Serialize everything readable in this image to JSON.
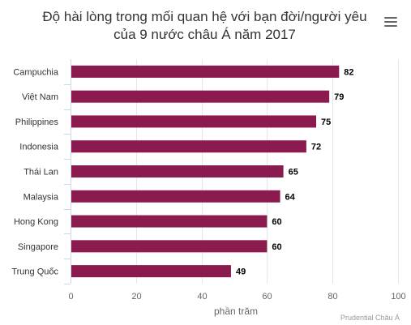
{
  "title_line1": "Độ hài lòng trong mối quan hệ với bạn đời/người yêu",
  "title_line2": "của 9 nước châu Á năm 2017",
  "menu_icon": "hamburger-menu-icon",
  "credit": "Prudential Châu Á",
  "colors": {
    "bar": "#8b1a4f",
    "grid": "#e6e6e6",
    "text": "#333333",
    "axis_text": "#666666"
  },
  "chart_data": {
    "type": "bar",
    "orientation": "horizontal",
    "title": "Độ hài lòng trong mối quan hệ với bạn đời/người yêu của 9 nước châu Á năm 2017",
    "categories": [
      "Campuchia",
      "Việt Nam",
      "Philippines",
      "Indonesia",
      "Thái Lan",
      "Malaysia",
      "Hong Kong",
      "Singapore",
      "Trung Quốc"
    ],
    "values": [
      82,
      79,
      75,
      72,
      65,
      64,
      60,
      60,
      49
    ],
    "xlabel": "phần trăm",
    "ylabel": "",
    "xlim": [
      0,
      100
    ],
    "xticks": [
      0,
      20,
      40,
      60,
      80,
      100
    ],
    "grid": true,
    "data_labels": true
  }
}
